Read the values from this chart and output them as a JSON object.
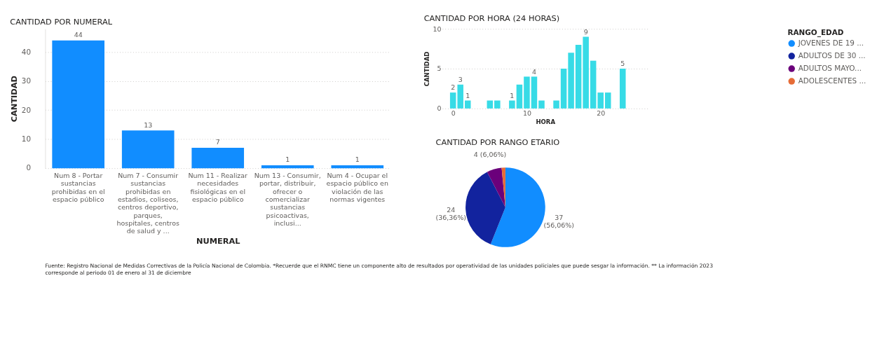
{
  "chart_data": [
    {
      "type": "bar",
      "title": "CANTIDAD POR NUMERAL",
      "xlabel": "NUMERAL",
      "ylabel": "CANTIDAD",
      "categories": [
        "Num 8 - Portar sustancias prohibidas en el espacio público",
        "Num 7 - Consumir sustancias prohibidas en estadios, coliseos, centros deportivo, parques, hospitales, centros de salud y ...",
        "Num 11 - Realizar necesidades fisiológicas en el espacio público",
        "Num 13 - Consumir, portar, distribuir, ofrecer o comercializar sustancias psicoactivas, inclusi...",
        "Num 4 - Ocupar el espacio público en violación de las normas vigentes"
      ],
      "values": [
        44,
        13,
        7,
        1,
        1
      ],
      "color": "#118dff",
      "data_labels": true,
      "ylim": [
        0,
        48
      ],
      "yticks": [
        0,
        10,
        20,
        30,
        40
      ],
      "grid": "y",
      "annotations": [
        "Fuente: Registro Nacional de Medidas Correctivas de la Policía Nacional de Colombia. *Recuerde que el RNMC tiene un componente alto de resultados por operatividad de las unidades policiales que puede sesgar la información. ** La información 2023 corresponde al periodo 01 de enero al 31 de diciembre"
      ]
    },
    {
      "type": "bar",
      "title": "CANTIDAD POR HORA (24 HORAS)",
      "xlabel": "HORA",
      "ylabel": "CANTIDAD",
      "x": [
        0,
        1,
        2,
        5,
        6,
        8,
        9,
        10,
        11,
        12,
        14,
        15,
        16,
        17,
        18,
        19,
        20,
        21,
        23
      ],
      "values": [
        2,
        3,
        1,
        1,
        1,
        1,
        3,
        4,
        4,
        1,
        1,
        5,
        7,
        8,
        9,
        6,
        2,
        2,
        5
      ],
      "value_labels": [
        "2",
        "3",
        "1",
        null,
        null,
        "1",
        null,
        null,
        "4",
        null,
        null,
        null,
        null,
        null,
        "9",
        null,
        null,
        null,
        "5"
      ],
      "color": "#37dbe6",
      "xlim": [
        -1,
        26
      ],
      "xticks": [
        0,
        10,
        20
      ],
      "ylim": [
        0,
        10
      ],
      "yticks": [
        0,
        5,
        10
      ],
      "grid": "y"
    },
    {
      "type": "pie",
      "title": "CANTIDAD POR RANGO ETARIO",
      "legend_title": "RANGO_EDAD",
      "legend": "right",
      "categories": [
        "JOVENES DE 19 ...",
        "ADULTOS DE 30 ...",
        "ADULTOS MAYO...",
        "ADOLESCENTES ..."
      ],
      "values": [
        37,
        24,
        4,
        1
      ],
      "colors": [
        "#118dff",
        "#12239e",
        "#6b007b",
        "#e66c37"
      ],
      "value_labels": [
        "37\n(56,06%)",
        "24\n(36,36%)",
        "4 (6,06%)",
        null
      ]
    }
  ]
}
